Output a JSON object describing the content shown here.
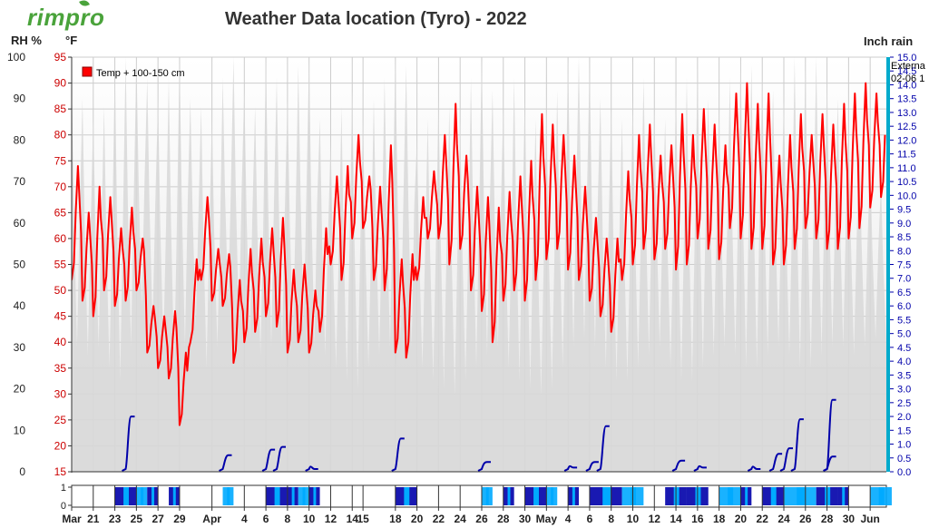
{
  "brand": {
    "logo_text": "rimpro",
    "logo_color": "#4aa33b"
  },
  "header": {
    "title": "Weather Data location (Tyro) - 2022"
  },
  "axes_labels": {
    "rh_unit": "RH %",
    "temp_unit": "°F",
    "rain_unit": "Inch rain"
  },
  "side_labels": {
    "external_line1": "Externa",
    "external_line2": "02-06 1"
  },
  "colors": {
    "temp": "#ff0000",
    "rh_fill": "#d8d8d8",
    "rain": "#0000aa",
    "wet_dark": "#0000aa",
    "wet_light": "#00aaff",
    "axis_right": "#00aacc",
    "grid": "#cccccc"
  },
  "chart_data": {
    "type": "line",
    "title": "Weather Data location (Tyro) - 2022",
    "legend": [
      "Temp + 100-150 cm"
    ],
    "legend_position": "top-left",
    "grid": true,
    "x_tick_labels": [
      "Mar",
      "21",
      "23",
      "25",
      "27",
      "29",
      "Apr",
      "4",
      "6",
      "8",
      "10",
      "12",
      "14",
      "15",
      "18",
      "20",
      "22",
      "24",
      "26",
      "28",
      "30",
      "May",
      "4",
      "6",
      "8",
      "10",
      "12",
      "14",
      "16",
      "18",
      "20",
      "22",
      "24",
      "26",
      "28",
      "30",
      "Jun"
    ],
    "x_tick_dates": [
      "2022-03-19",
      "2022-03-21",
      "2022-03-23",
      "2022-03-25",
      "2022-03-27",
      "2022-03-29",
      "2022-04-01",
      "2022-04-04",
      "2022-04-06",
      "2022-04-08",
      "2022-04-10",
      "2022-04-12",
      "2022-04-14",
      "2022-04-15",
      "2022-04-18",
      "2022-04-20",
      "2022-04-22",
      "2022-04-24",
      "2022-04-26",
      "2022-04-28",
      "2022-04-30",
      "2022-05-02",
      "2022-05-04",
      "2022-05-06",
      "2022-05-08",
      "2022-05-10",
      "2022-05-12",
      "2022-05-14",
      "2022-05-16",
      "2022-05-18",
      "2022-05-20",
      "2022-05-22",
      "2022-05-24",
      "2022-05-26",
      "2022-05-28",
      "2022-05-30",
      "2022-06-01"
    ],
    "y_left_rh": {
      "label": "RH %",
      "ticks": [
        0,
        10,
        20,
        30,
        40,
        50,
        60,
        70,
        80,
        90,
        100
      ],
      "range": [
        0,
        100
      ]
    },
    "y_left_temp": {
      "label": "°F",
      "ticks": [
        15,
        20,
        25,
        30,
        35,
        40,
        45,
        50,
        55,
        60,
        65,
        70,
        75,
        80,
        85,
        90,
        95
      ],
      "range": [
        15,
        95
      ]
    },
    "y_right_rain": {
      "label": "Inch rain",
      "ticks": [
        "0.0",
        "0.5",
        "1.0",
        "1.5",
        "2.0",
        "2.5",
        "3.0",
        "3.5",
        "4.0",
        "4.5",
        "5.0",
        "5.5",
        "6.0",
        "6.5",
        "7.0",
        "7.5",
        "8.0",
        "8.5",
        "9.0",
        "9.5",
        "10.0",
        "10.5",
        "11.0",
        "11.5",
        "12.0",
        "12.5",
        "13.0",
        "13.5",
        "14.0",
        "14.5",
        "15.0"
      ],
      "range": [
        0,
        15
      ]
    },
    "wetness_axis": {
      "ticks": [
        "0",
        "1"
      ]
    },
    "series": [
      {
        "name": "Temp + 100-150 cm",
        "unit": "°F",
        "x": [
          "03-19",
          "03-20",
          "03-21",
          "03-22",
          "03-23",
          "03-24",
          "03-25",
          "03-26",
          "03-27",
          "03-28",
          "03-29",
          "03-30",
          "03-31",
          "04-01",
          "04-02",
          "04-03",
          "04-04",
          "04-05",
          "04-06",
          "04-07",
          "04-08",
          "04-09",
          "04-10",
          "04-11",
          "04-12",
          "04-13",
          "04-14",
          "04-15",
          "04-16",
          "04-17",
          "04-18",
          "04-19",
          "04-20",
          "04-21",
          "04-22",
          "04-23",
          "04-24",
          "04-25",
          "04-26",
          "04-27",
          "04-28",
          "04-29",
          "04-30",
          "05-01",
          "05-02",
          "05-03",
          "05-04",
          "05-05",
          "05-06",
          "05-07",
          "05-08",
          "05-09",
          "05-10",
          "05-11",
          "05-12",
          "05-13",
          "05-14",
          "05-15",
          "05-16",
          "05-17",
          "05-18",
          "05-19",
          "05-20",
          "05-21",
          "05-22",
          "05-23",
          "05-24",
          "05-25",
          "05-26",
          "05-27",
          "05-28",
          "05-29",
          "05-30",
          "05-31",
          "06-01",
          "06-02"
        ],
        "min": [
          52,
          48,
          45,
          50,
          47,
          48,
          50,
          38,
          35,
          33,
          24,
          40,
          52,
          48,
          47,
          36,
          40,
          42,
          45,
          43,
          38,
          40,
          38,
          42,
          55,
          52,
          60,
          62,
          52,
          50,
          38,
          37,
          52,
          60,
          60,
          55,
          58,
          50,
          46,
          40,
          48,
          50,
          48,
          52,
          56,
          58,
          54,
          52,
          48,
          45,
          42,
          52,
          55,
          58,
          56,
          58,
          54,
          55,
          60,
          58,
          56,
          62,
          60,
          58,
          58,
          55,
          55,
          58,
          62,
          60,
          58,
          58,
          60,
          62,
          66,
          68
        ],
        "max": [
          74,
          65,
          70,
          68,
          62,
          66,
          60,
          47,
          45,
          46,
          38,
          56,
          68,
          58,
          57,
          52,
          58,
          60,
          62,
          64,
          54,
          55,
          50,
          62,
          72,
          74,
          80,
          72,
          70,
          78,
          56,
          57,
          68,
          73,
          80,
          86,
          76,
          70,
          68,
          66,
          69,
          72,
          75,
          84,
          82,
          80,
          76,
          70,
          64,
          60,
          60,
          73,
          80,
          82,
          76,
          78,
          84,
          80,
          85,
          82,
          78,
          88,
          90,
          86,
          88,
          76,
          80,
          84,
          80,
          84,
          82,
          86,
          88,
          90,
          88,
          88
        ]
      },
      {
        "name": "Relative humidity",
        "unit": "%",
        "x": [
          "03-19",
          "03-20",
          "03-21",
          "03-22",
          "03-23",
          "03-24",
          "03-25",
          "03-26",
          "03-27",
          "03-28",
          "03-29",
          "03-30",
          "03-31",
          "04-01",
          "04-02",
          "04-03",
          "04-04",
          "04-05",
          "04-06",
          "04-07",
          "04-08",
          "04-09",
          "04-10",
          "04-11",
          "04-12",
          "04-13",
          "04-14",
          "04-15",
          "04-16",
          "04-17",
          "04-18",
          "04-19",
          "04-20",
          "04-21",
          "04-22",
          "04-23",
          "04-24",
          "04-25",
          "04-26",
          "04-27",
          "04-28",
          "04-29",
          "04-30",
          "05-01",
          "05-02",
          "05-03",
          "05-04",
          "05-05",
          "05-06",
          "05-07",
          "05-08",
          "05-09",
          "05-10",
          "05-11",
          "05-12",
          "05-13",
          "05-14",
          "05-15",
          "05-16",
          "05-17",
          "05-18",
          "05-19",
          "05-20",
          "05-21",
          "05-22",
          "05-23",
          "05-24",
          "05-25",
          "05-26",
          "05-27",
          "05-28",
          "05-29",
          "05-30",
          "05-31",
          "06-01",
          "06-02"
        ],
        "min": [
          30,
          28,
          30,
          25,
          22,
          30,
          40,
          35,
          30,
          25,
          30,
          35,
          25,
          30,
          40,
          35,
          32,
          28,
          30,
          30,
          32,
          35,
          30,
          28,
          25,
          22,
          20,
          25,
          28,
          30,
          32,
          30,
          25,
          22,
          20,
          18,
          22,
          25,
          28,
          30,
          25,
          22,
          20,
          18,
          20,
          25,
          30,
          32,
          30,
          25,
          22,
          22,
          25,
          28,
          30,
          25,
          22,
          22,
          25,
          28,
          30,
          28,
          25,
          25,
          28,
          30,
          28,
          25,
          25,
          28,
          30,
          30,
          28,
          30,
          32,
          30
        ],
        "max": [
          95,
          90,
          85,
          88,
          98,
          100,
          100,
          95,
          90,
          95,
          100,
          90,
          88,
          85,
          95,
          100,
          92,
          88,
          100,
          95,
          90,
          98,
          100,
          85,
          80,
          88,
          92,
          85,
          90,
          95,
          100,
          98,
          80,
          85,
          90,
          88,
          85,
          95,
          100,
          92,
          88,
          95,
          90,
          85,
          88,
          92,
          100,
          100,
          98,
          90,
          88,
          85,
          90,
          95,
          88,
          85,
          92,
          95,
          98,
          90,
          88,
          95,
          100,
          98,
          95,
          92,
          90,
          100,
          98,
          100,
          95,
          90,
          85,
          80,
          75,
          70
        ]
      }
    ],
    "rain_events": [
      {
        "date": "03-24",
        "inches": 2.0
      },
      {
        "date": "04-02",
        "inches": 0.6
      },
      {
        "date": "04-06",
        "inches": 0.8
      },
      {
        "date": "04-07",
        "inches": 0.9
      },
      {
        "date": "04-10",
        "inches": 0.1
      },
      {
        "date": "04-18",
        "inches": 1.2
      },
      {
        "date": "04-26",
        "inches": 0.35
      },
      {
        "date": "05-04",
        "inches": 0.15
      },
      {
        "date": "05-06",
        "inches": 0.35
      },
      {
        "date": "05-07",
        "inches": 1.65
      },
      {
        "date": "05-14",
        "inches": 0.4
      },
      {
        "date": "05-16",
        "inches": 0.15
      },
      {
        "date": "05-21",
        "inches": 0.1
      },
      {
        "date": "05-23",
        "inches": 0.65
      },
      {
        "date": "05-24",
        "inches": 0.85
      },
      {
        "date": "05-25",
        "inches": 1.9
      },
      {
        "date": "05-28",
        "inches": 0.55
      },
      {
        "date": "05-28",
        "inches": 2.6
      }
    ],
    "leaf_wetness": {
      "levels": [
        0,
        1
      ],
      "wet_periods": [
        [
          "03-23",
          "03-24"
        ],
        [
          "03-25",
          "03-25"
        ],
        [
          "03-26",
          "03-26"
        ],
        [
          "03-28",
          "03-28"
        ],
        [
          "04-02",
          "04-02"
        ],
        [
          "04-06",
          "04-07"
        ],
        [
          "04-08",
          "04-08"
        ],
        [
          "04-09",
          "04-09"
        ],
        [
          "04-10",
          "04-10"
        ],
        [
          "04-18",
          "04-19"
        ],
        [
          "04-26",
          "04-26"
        ],
        [
          "04-28",
          "04-28"
        ],
        [
          "04-30",
          "05-01"
        ],
        [
          "05-02",
          "05-02"
        ],
        [
          "05-04",
          "05-04"
        ],
        [
          "05-06",
          "05-08"
        ],
        [
          "05-09",
          "05-10"
        ],
        [
          "05-13",
          "05-14"
        ],
        [
          "05-15",
          "05-16"
        ],
        [
          "05-18",
          "05-19"
        ],
        [
          "05-20",
          "05-20"
        ],
        [
          "05-22",
          "05-23"
        ],
        [
          "05-24",
          "05-26"
        ],
        [
          "05-27",
          "05-28"
        ],
        [
          "05-29",
          "05-29"
        ],
        [
          "06-01",
          "06-02"
        ]
      ]
    }
  }
}
